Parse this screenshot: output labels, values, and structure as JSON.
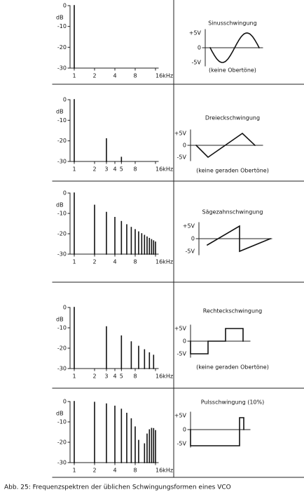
{
  "chart_data": [
    {
      "type": "spectrum",
      "y_label": "dB",
      "x": [
        1
      ],
      "values": [
        0
      ],
      "xlim": [
        1,
        16
      ],
      "xscale": "log",
      "xticks": [
        1,
        2,
        4,
        8,
        {
          "value": 16,
          "label": "16kHz"
        }
      ],
      "ylim": [
        -30,
        0
      ],
      "yticks": [
        0,
        -10,
        -20,
        -30
      ]
    },
    {
      "type": "spectrum",
      "y_label": "dB",
      "x": [
        1,
        3,
        5
      ],
      "values": [
        0,
        -19,
        -28
      ],
      "xlim": [
        1,
        16
      ],
      "xscale": "log",
      "xticks": [
        1,
        2,
        3,
        4,
        5,
        8,
        {
          "value": 16,
          "label": "16kHz"
        }
      ],
      "ylim": [
        -30,
        0
      ],
      "yticks": [
        0,
        -10,
        -20,
        -30
      ]
    },
    {
      "type": "spectrum",
      "y_label": "dB",
      "x": [
        1,
        2,
        3,
        4,
        5,
        6,
        7,
        8,
        9,
        10,
        11,
        12,
        13,
        14,
        15,
        16
      ],
      "values": [
        0,
        -6,
        -9.5,
        -12,
        -14,
        -15.6,
        -16.9,
        -18,
        -19.1,
        -20,
        -20.8,
        -21.6,
        -22.3,
        -22.9,
        -23.5,
        -24.1
      ],
      "xlim": [
        1,
        16
      ],
      "xscale": "log",
      "xticks": [
        1,
        2,
        4,
        8,
        {
          "value": 16,
          "label": "16kHz"
        }
      ],
      "ylim": [
        -30,
        0
      ],
      "yticks": [
        0,
        -10,
        -20,
        -30
      ]
    },
    {
      "type": "spectrum",
      "y_label": "dB",
      "x": [
        1,
        3,
        5,
        7,
        9,
        11,
        13,
        15
      ],
      "values": [
        0,
        -9.5,
        -14,
        -16.9,
        -19.1,
        -20.8,
        -22.3,
        -23.5
      ],
      "xlim": [
        1,
        16
      ],
      "xscale": "log",
      "xticks": [
        1,
        2,
        3,
        4,
        5,
        8,
        {
          "value": 16,
          "label": "16kHz"
        }
      ],
      "ylim": [
        -30,
        0
      ],
      "yticks": [
        0,
        -10,
        -20,
        -30
      ]
    },
    {
      "type": "spectrum",
      "y_label": "dB",
      "x": [
        1,
        2,
        3,
        4,
        5,
        6,
        7,
        8,
        9,
        11,
        12,
        13,
        14,
        15,
        16
      ],
      "values": [
        0,
        -0.4,
        -1.2,
        -2.3,
        -3.8,
        -5.8,
        -8.5,
        -12.5,
        -19.1,
        -20.8,
        -16,
        -13.9,
        -13.2,
        -13.3,
        -14.3
      ],
      "xlim": [
        1,
        16
      ],
      "xscale": "log",
      "xticks": [
        1,
        2,
        4,
        8,
        {
          "value": 16,
          "label": "16kHz"
        }
      ],
      "ylim": [
        -30,
        0
      ],
      "yticks": [
        0,
        -10,
        -20,
        -30
      ]
    }
  ],
  "panels": [
    {
      "title": "Sinusschwingung",
      "note": "(keine Obertöne)",
      "voltage_labels": [
        "+5V",
        "0",
        "-5V"
      ]
    },
    {
      "title": "Dreieckschwingung",
      "note": "(keine geraden Obertöne)",
      "voltage_labels": [
        "+5V",
        "0",
        "-5V"
      ]
    },
    {
      "title": "Sägezahnschwingung",
      "voltage_labels": [
        "+5V",
        "0",
        "-5V"
      ]
    },
    {
      "title": "Rechteckschwingung",
      "note": "(keine geraden Obertöne)",
      "voltage_labels": [
        "+5V",
        "0",
        "-5V"
      ]
    },
    {
      "title": "Pulsschwingung (10%)",
      "voltage_labels": [
        "+5V",
        "0",
        "-5V"
      ]
    }
  ],
  "caption": "Abb. 25: Frequenzspektren der üblichen Schwingungsformen eines VCO"
}
